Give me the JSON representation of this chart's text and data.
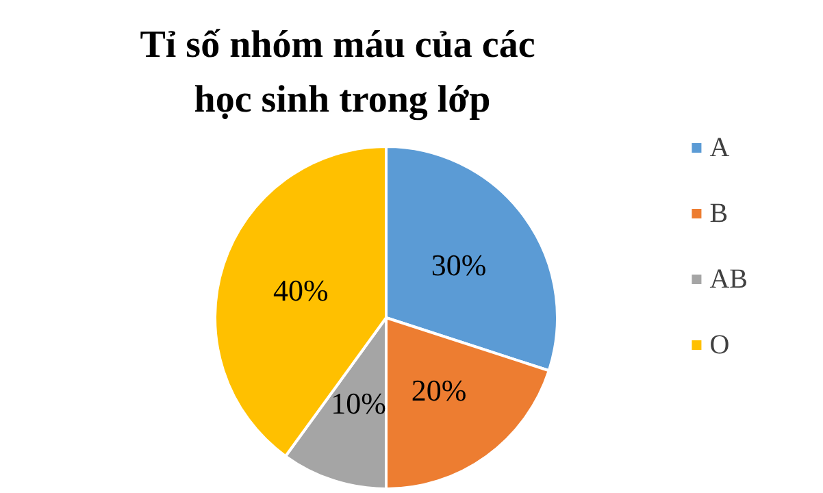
{
  "chart_data": {
    "type": "pie",
    "title": "Tỉ số nhóm máu của các học sinh trong lớp",
    "categories": [
      "A",
      "B",
      "AB",
      "O"
    ],
    "values": [
      30,
      20,
      10,
      40
    ],
    "colors": [
      "#5b9bd5",
      "#ed7d31",
      "#a5a5a5",
      "#ffc000"
    ],
    "value_labels": [
      "30%",
      "20%",
      "10%",
      "40%"
    ],
    "legend": "right"
  }
}
